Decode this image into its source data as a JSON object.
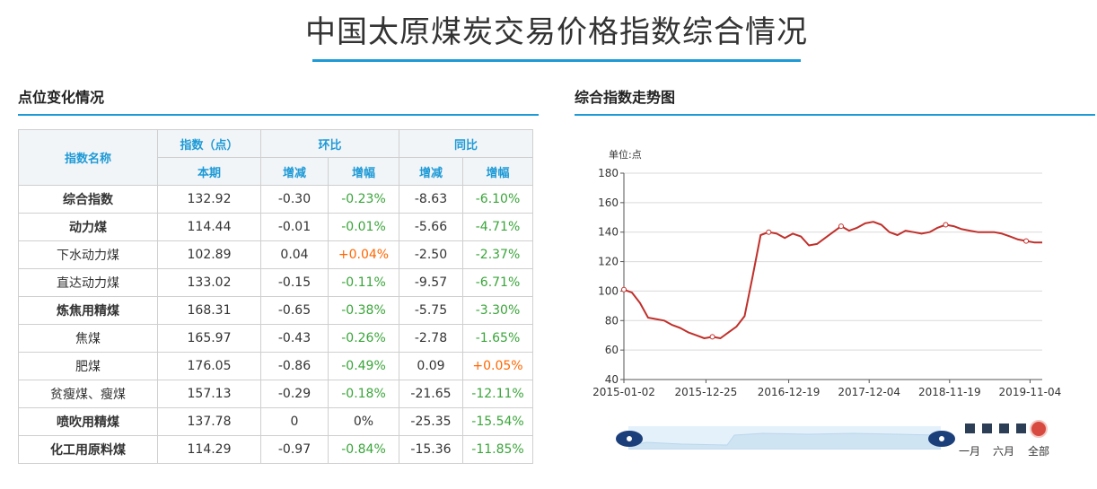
{
  "page_title": "中国太原煤炭交易价格指数综合情况",
  "left_section_title": "点位变化情况",
  "right_section_title": "综合指数走势图",
  "table": {
    "headers": {
      "name": "指数名称",
      "index": "指数（点）",
      "index_sub": "本期",
      "mom": "环比",
      "yoy": "同比",
      "change": "增减",
      "rate": "增幅"
    },
    "rows": [
      {
        "name": "综合指数",
        "bold": true,
        "value": "132.92",
        "mom_change": "-0.30",
        "mom_rate": "-0.23%",
        "yoy_change": "-8.63",
        "yoy_rate": "-6.10%"
      },
      {
        "name": "动力煤",
        "bold": true,
        "value": "114.44",
        "mom_change": "-0.01",
        "mom_rate": "-0.01%",
        "yoy_change": "-5.66",
        "yoy_rate": "-4.71%"
      },
      {
        "name": "下水动力煤",
        "bold": false,
        "value": "102.89",
        "mom_change": "0.04",
        "mom_rate": "+0.04%",
        "yoy_change": "-2.50",
        "yoy_rate": "-2.37%"
      },
      {
        "name": "直达动力煤",
        "bold": false,
        "value": "133.02",
        "mom_change": "-0.15",
        "mom_rate": "-0.11%",
        "yoy_change": "-9.57",
        "yoy_rate": "-6.71%"
      },
      {
        "name": "炼焦用精煤",
        "bold": true,
        "value": "168.31",
        "mom_change": "-0.65",
        "mom_rate": "-0.38%",
        "yoy_change": "-5.75",
        "yoy_rate": "-3.30%"
      },
      {
        "name": "焦煤",
        "bold": false,
        "value": "165.97",
        "mom_change": "-0.43",
        "mom_rate": "-0.26%",
        "yoy_change": "-2.78",
        "yoy_rate": "-1.65%"
      },
      {
        "name": "肥煤",
        "bold": false,
        "value": "176.05",
        "mom_change": "-0.86",
        "mom_rate": "-0.49%",
        "yoy_change": "0.09",
        "yoy_rate": "+0.05%"
      },
      {
        "name": "贫瘦煤、瘦煤",
        "bold": false,
        "value": "157.13",
        "mom_change": "-0.29",
        "mom_rate": "-0.18%",
        "yoy_change": "-21.65",
        "yoy_rate": "-12.11%"
      },
      {
        "name": "喷吹用精煤",
        "bold": true,
        "value": "137.78",
        "mom_change": "0",
        "mom_rate": "0%",
        "yoy_change": "-25.35",
        "yoy_rate": "-15.54%"
      },
      {
        "name": "化工用原料煤",
        "bold": true,
        "value": "114.29",
        "mom_change": "-0.97",
        "mom_rate": "-0.84%",
        "yoy_change": "-15.36",
        "yoy_rate": "-11.85%"
      }
    ]
  },
  "colors": {
    "accent": "#1e9ad6",
    "decrease": "#3aa53a",
    "increase": "#ff6600",
    "line": "#c0302b"
  },
  "range_buttons": [
    "一月",
    "六月",
    "全部"
  ],
  "chart_data": {
    "type": "line",
    "unit_label": "单位:点",
    "ylim": [
      40,
      180
    ],
    "yticks": [
      40,
      60,
      80,
      100,
      120,
      140,
      160,
      180
    ],
    "xticks": [
      "2015-01-02",
      "2015-12-25",
      "2016-12-19",
      "2017-12-04",
      "2018-11-19",
      "2019-11-04"
    ],
    "grid": true,
    "series": [
      {
        "x": [
          "2015-01-02",
          "2015-02-06",
          "2015-03-13",
          "2015-04-17",
          "2015-05-22",
          "2015-06-26",
          "2015-07-31",
          "2015-09-04",
          "2015-10-09",
          "2015-11-13",
          "2015-12-18",
          "2016-01-22",
          "2016-02-26",
          "2016-04-01",
          "2016-05-06",
          "2016-06-10",
          "2016-07-15",
          "2016-08-19",
          "2016-09-23",
          "2016-10-28",
          "2016-12-02",
          "2017-01-06",
          "2017-02-10",
          "2017-03-17",
          "2017-04-21",
          "2017-05-26",
          "2017-06-30",
          "2017-08-04",
          "2017-09-08",
          "2017-10-13",
          "2017-11-17",
          "2017-12-22",
          "2018-01-26",
          "2018-03-02",
          "2018-04-06",
          "2018-05-11",
          "2018-06-15",
          "2018-07-20",
          "2018-08-24",
          "2018-09-28",
          "2018-11-02",
          "2018-12-07",
          "2019-01-11",
          "2019-02-15",
          "2019-03-22",
          "2019-04-26",
          "2019-05-31",
          "2019-07-05",
          "2019-08-09",
          "2019-09-13",
          "2019-10-18",
          "2019-11-22",
          "2019-12-27"
        ],
        "values": [
          101,
          99,
          92,
          82,
          81,
          80,
          77,
          75,
          72,
          70,
          68,
          69,
          68,
          72,
          76,
          83,
          110,
          138,
          140,
          139,
          136,
          139,
          137,
          131,
          132,
          136,
          140,
          144,
          141,
          143,
          146,
          147,
          145,
          140,
          138,
          141,
          140,
          139,
          140,
          143,
          145,
          144,
          142,
          141,
          140,
          140,
          140,
          139,
          137,
          135,
          134,
          133,
          133
        ]
      }
    ]
  }
}
